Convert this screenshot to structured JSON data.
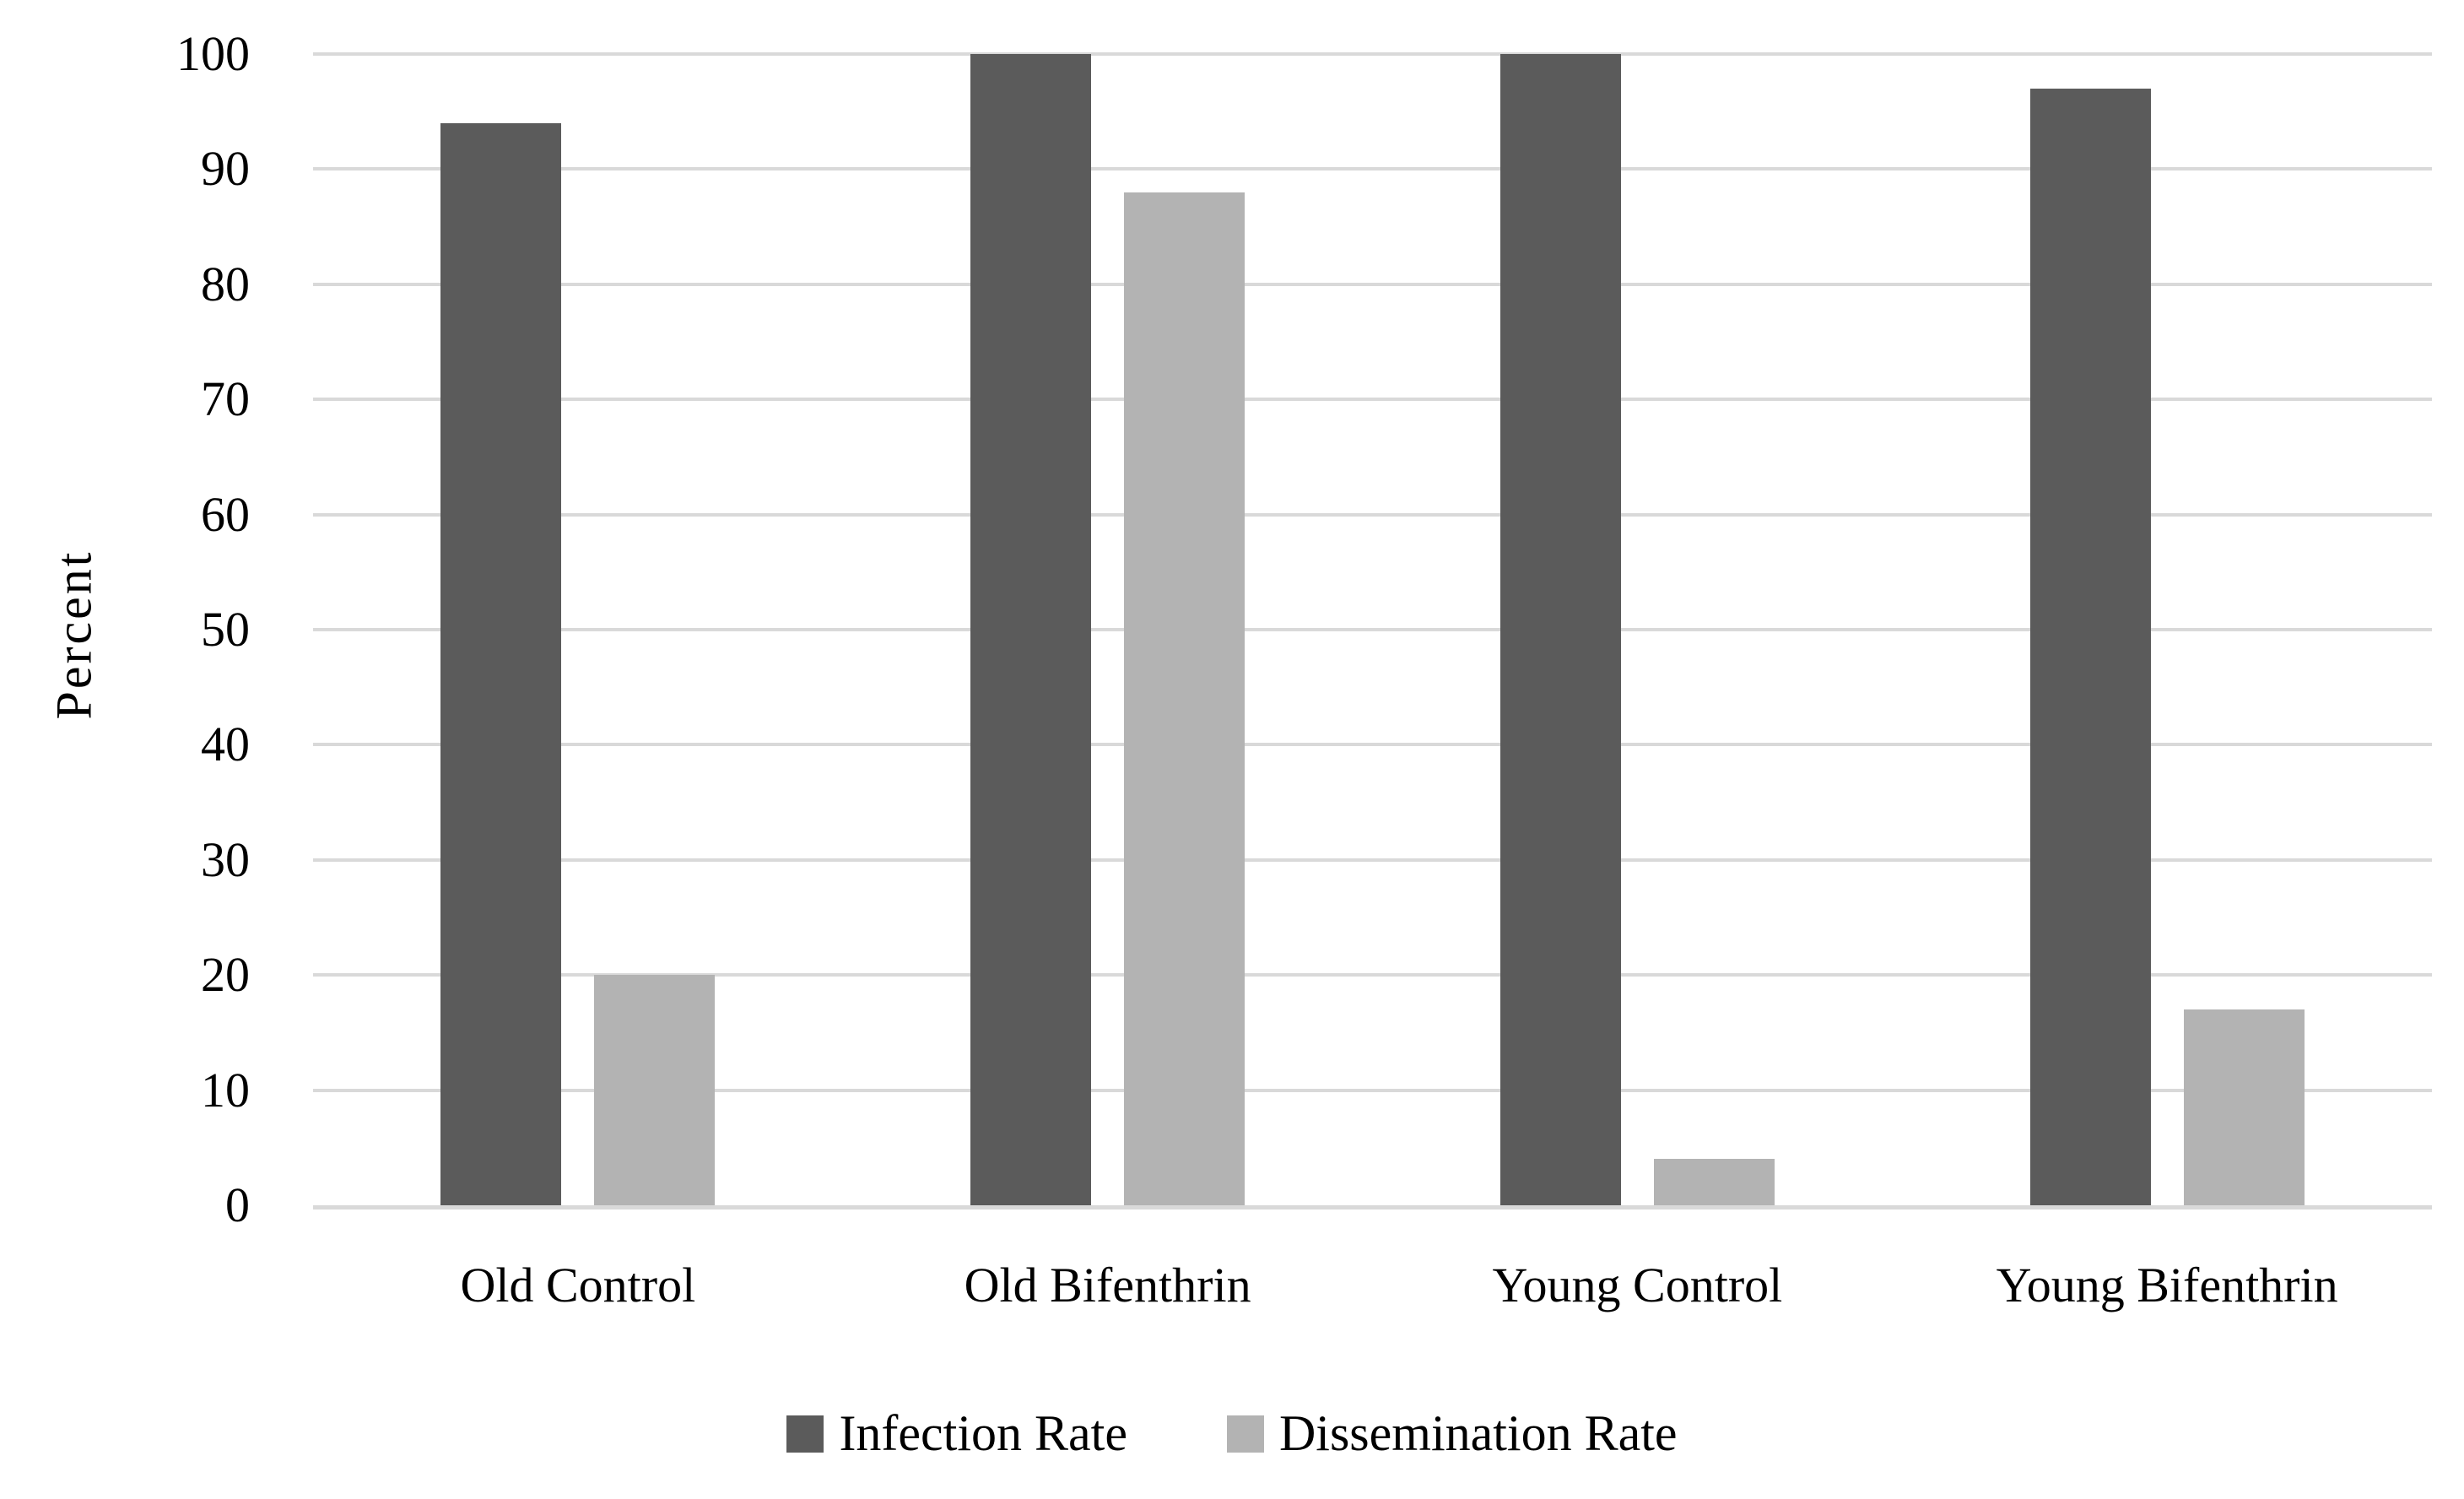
{
  "chart_data": {
    "type": "bar",
    "title": "",
    "categories": [
      "Old Control",
      "Old Bifenthrin",
      "Young Control",
      "Young Bifenthrin"
    ],
    "series": [
      {
        "name": "Infection Rate",
        "color": "#5b5b5b",
        "values": [
          94,
          100,
          100,
          97
        ]
      },
      {
        "name": "Dissemination Rate",
        "color": "#b3b3b3",
        "values": [
          20,
          88,
          4,
          17
        ]
      }
    ],
    "xlabel": "",
    "ylabel": "Percent",
    "ylim": [
      0,
      100
    ],
    "ytick_step": 10,
    "grid": true,
    "gridline_color": "#d9d9d9",
    "axis_line_color": "#d9d9d9",
    "background_color": "#ffffff",
    "text_color": "#000000",
    "legend_position": "bottom"
  }
}
